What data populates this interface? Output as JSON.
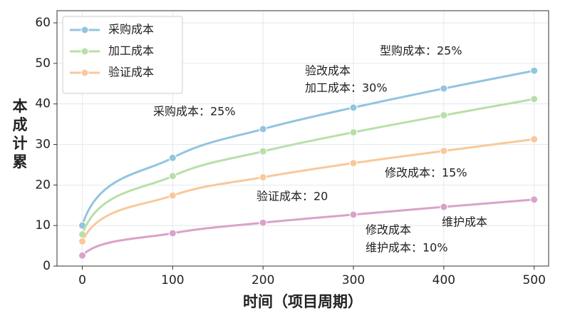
{
  "chart_data": {
    "type": "line",
    "x": [
      0,
      100,
      200,
      300,
      400,
      500
    ],
    "series": [
      {
        "name": "采购成本",
        "color": "#92c5de",
        "values": [
          10,
          26.7,
          33.8,
          39.1,
          43.8,
          48.2
        ]
      },
      {
        "name": "加工成本",
        "color": "#b8dfa8",
        "values": [
          7.8,
          22.2,
          28.3,
          33,
          37.2,
          41.2
        ]
      },
      {
        "name": "验证成本",
        "color": "#f9c89b",
        "values": [
          6.1,
          17.4,
          21.9,
          25.4,
          28.4,
          31.3
        ]
      },
      {
        "color": "#d9a3c9",
        "values": [
          2.6,
          8.1,
          10.7,
          12.7,
          14.6,
          16.4
        ]
      }
    ],
    "xlabel": "时间（项目周期）",
    "ylabel": "本成计累",
    "xlim": [
      -28,
      516
    ],
    "ylim": [
      0,
      63
    ],
    "xticks": [
      0,
      100,
      200,
      300,
      400,
      500
    ],
    "yticks": [
      0,
      10,
      20,
      30,
      40,
      50,
      60
    ],
    "grid": true,
    "legend": "upper left",
    "annotations": [
      "型购成本：25%",
      "验改成本",
      "加工成本：30%",
      "采购成本：25%",
      "修改成本：15%",
      "验证成本：20",
      "维护成本",
      "修改成本",
      "维护成本：10%"
    ]
  }
}
